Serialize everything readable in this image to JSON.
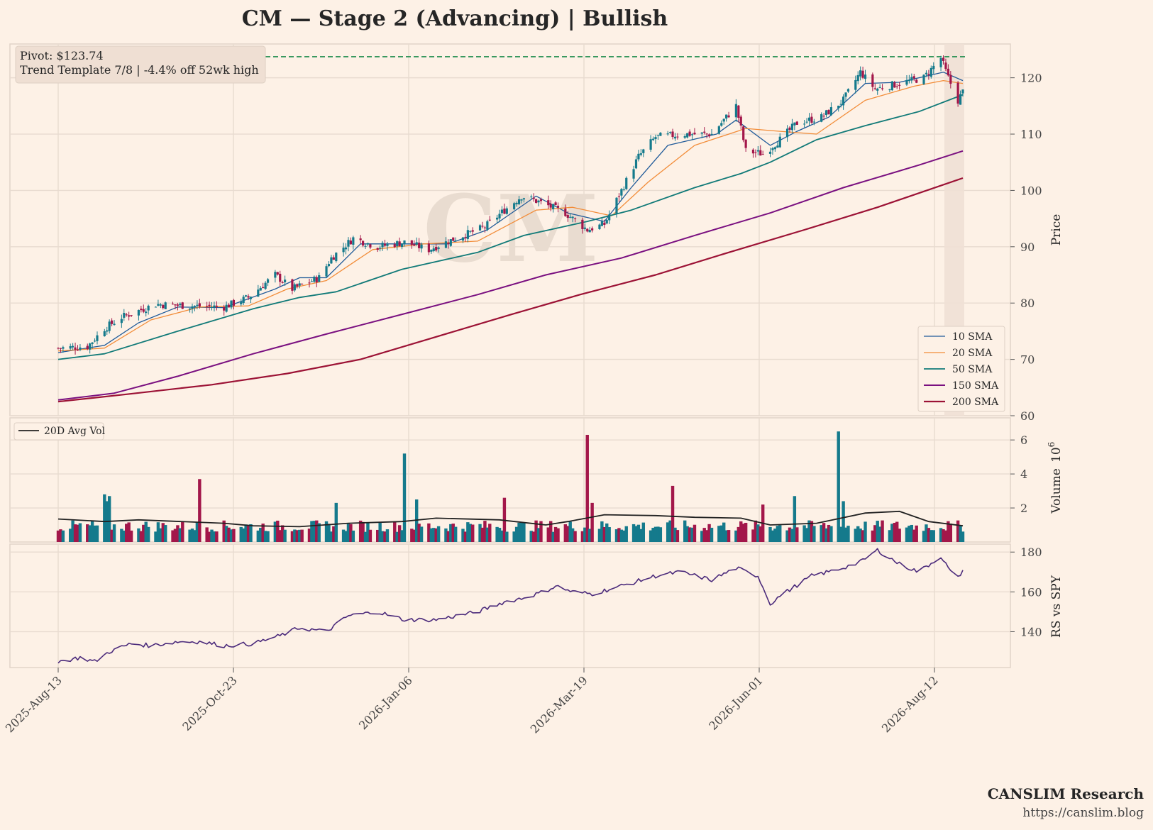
{
  "title": "CM  —  Stage 2 (Advancing)  |  Bullish",
  "watermark": "CM",
  "info_box": {
    "line1": "Pivot: $123.74",
    "line2": "Trend Template 7/8  |  -4.4% off 52wk high"
  },
  "footer": {
    "brand": "CANSLIM Research",
    "url": "https://canslim.blog"
  },
  "colors": {
    "background": "#fdf1e6",
    "grid": "#e8dbd0",
    "up_candle": "#157a8c",
    "down_candle": "#a3174a",
    "sma10": "#1f5a99",
    "sma20": "#f28c38",
    "sma50": "#117a78",
    "sma150": "#7a1080",
    "sma200": "#9c1235",
    "pivot": "#1b8a4a",
    "avg_volume": "#222222",
    "rs_line": "#4b2a7b",
    "highlight": "#efe0d5"
  },
  "chart_data": [
    {
      "type": "candlestick",
      "panel": "price",
      "ylabel": "Price",
      "ylim": [
        60,
        126
      ],
      "yticks": [
        60,
        70,
        80,
        90,
        100,
        110,
        120
      ],
      "x_range": [
        "2025-08-13",
        "2026-08-19"
      ],
      "x_ticks": [
        "2025-Aug-13",
        "2025-Oct-23",
        "2026-Jan-06",
        "2026-Mar-19",
        "2026-Jun-01",
        "2026-Aug-12"
      ],
      "grid": true,
      "legend_position": "lower-right",
      "pivot_line": 123.74,
      "highlight_range": [
        "2026-08-12",
        "2026-08-19"
      ],
      "close_anchors": [
        [
          "2025-08-13",
          72.0
        ],
        [
          "2025-08-25",
          72.3
        ],
        [
          "2025-09-01",
          75.5
        ],
        [
          "2025-09-08",
          77.5
        ],
        [
          "2025-09-22",
          79.8
        ],
        [
          "2025-10-06",
          79.5
        ],
        [
          "2025-10-20",
          79.3
        ],
        [
          "2025-10-30",
          81.0
        ],
        [
          "2025-11-10",
          85.0
        ],
        [
          "2025-11-17",
          82.5
        ],
        [
          "2025-11-28",
          84.5
        ],
        [
          "2025-12-03",
          88.0
        ],
        [
          "2025-12-12",
          91.5
        ],
        [
          "2025-12-22",
          90.0
        ],
        [
          "2026-01-02",
          90.8
        ],
        [
          "2026-01-12",
          89.5
        ],
        [
          "2026-01-23",
          91.5
        ],
        [
          "2026-02-04",
          93.5
        ],
        [
          "2026-02-12",
          96.5
        ],
        [
          "2026-02-19",
          99.0
        ],
        [
          "2026-02-26",
          98.0
        ],
        [
          "2026-03-09",
          96.0
        ],
        [
          "2026-03-18",
          93.0
        ],
        [
          "2026-03-25",
          94.0
        ],
        [
          "2026-04-01",
          100.0
        ],
        [
          "2026-04-08",
          106.0
        ],
        [
          "2026-04-15",
          109.5
        ],
        [
          "2026-04-27",
          110.0
        ],
        [
          "2026-05-08",
          110.0
        ],
        [
          "2026-05-18",
          115.0
        ],
        [
          "2026-05-22",
          107.0
        ],
        [
          "2026-05-29",
          106.5
        ],
        [
          "2026-06-05",
          109.0
        ],
        [
          "2026-06-12",
          112.0
        ],
        [
          "2026-06-22",
          113.0
        ],
        [
          "2026-07-01",
          116.0
        ],
        [
          "2026-07-08",
          121.0
        ],
        [
          "2026-07-14",
          118.0
        ],
        [
          "2026-07-24",
          119.0
        ],
        [
          "2026-08-03",
          120.0
        ],
        [
          "2026-08-10",
          123.5
        ],
        [
          "2026-08-13",
          120.0
        ],
        [
          "2026-08-17",
          116.0
        ],
        [
          "2026-08-19",
          117.5
        ]
      ],
      "series": [
        {
          "name": "10 SMA",
          "values": [
            [
              "2025-08-13",
              71.2
            ],
            [
              "2025-09-01",
              72.5
            ],
            [
              "2025-09-15",
              76.5
            ],
            [
              "2025-10-01",
              79.3
            ],
            [
              "2025-10-20",
              79.2
            ],
            [
              "2025-11-10",
              82.5
            ],
            [
              "2025-11-20",
              84.5
            ],
            [
              "2025-12-01",
              84.5
            ],
            [
              "2025-12-15",
              90.5
            ],
            [
              "2026-01-05",
              90.5
            ],
            [
              "2026-01-20",
              90.5
            ],
            [
              "2026-02-05",
              93.0
            ],
            [
              "2026-02-25",
              99.0
            ],
            [
              "2026-03-10",
              96.0
            ],
            [
              "2026-03-25",
              94.5
            ],
            [
              "2026-04-05",
              100.5
            ],
            [
              "2026-04-20",
              108.0
            ],
            [
              "2026-05-10",
              110.0
            ],
            [
              "2026-05-18",
              112.5
            ],
            [
              "2026-06-01",
              108.0
            ],
            [
              "2026-06-12",
              110.5
            ],
            [
              "2026-06-25",
              113.0
            ],
            [
              "2026-07-10",
              119.0
            ],
            [
              "2026-07-24",
              119.2
            ],
            [
              "2026-08-11",
              121.0
            ],
            [
              "2026-08-19",
              119.5
            ]
          ]
        },
        {
          "name": "20 SMA",
          "values": [
            [
              "2025-08-13",
              71.5
            ],
            [
              "2025-09-01",
              72.0
            ],
            [
              "2025-09-20",
              77.0
            ],
            [
              "2025-10-10",
              79.3
            ],
            [
              "2025-10-30",
              79.5
            ],
            [
              "2025-11-15",
              82.5
            ],
            [
              "2025-12-01",
              84.0
            ],
            [
              "2025-12-20",
              89.5
            ],
            [
              "2026-01-10",
              90.5
            ],
            [
              "2026-02-01",
              91.0
            ],
            [
              "2026-02-25",
              96.5
            ],
            [
              "2026-03-12",
              97.0
            ],
            [
              "2026-03-28",
              95.5
            ],
            [
              "2026-04-12",
              101.5
            ],
            [
              "2026-05-01",
              108.0
            ],
            [
              "2026-05-22",
              111.0
            ],
            [
              "2026-06-05",
              110.5
            ],
            [
              "2026-06-20",
              110.0
            ],
            [
              "2026-07-10",
              116.0
            ],
            [
              "2026-07-30",
              118.5
            ],
            [
              "2026-08-11",
              119.5
            ],
            [
              "2026-08-19",
              119.0
            ]
          ]
        },
        {
          "name": "50 SMA",
          "values": [
            [
              "2025-08-13",
              70.0
            ],
            [
              "2025-09-01",
              71.0
            ],
            [
              "2025-10-01",
              75.0
            ],
            [
              "2025-11-01",
              79.0
            ],
            [
              "2025-11-20",
              81.0
            ],
            [
              "2025-12-05",
              82.0
            ],
            [
              "2026-01-01",
              86.0
            ],
            [
              "2026-02-01",
              89.0
            ],
            [
              "2026-02-20",
              92.0
            ],
            [
              "2026-03-18",
              94.5
            ],
            [
              "2026-04-05",
              96.5
            ],
            [
              "2026-05-01",
              100.5
            ],
            [
              "2026-05-20",
              103.0
            ],
            [
              "2026-06-01",
              105.0
            ],
            [
              "2026-06-20",
              109.0
            ],
            [
              "2026-07-10",
              111.5
            ],
            [
              "2026-08-01",
              114.0
            ],
            [
              "2026-08-19",
              117.0
            ]
          ]
        },
        {
          "name": "150 SMA",
          "values": [
            [
              "2025-08-13",
              62.8
            ],
            [
              "2025-09-05",
              64.0
            ],
            [
              "2025-10-01",
              67.0
            ],
            [
              "2025-11-01",
              71.0
            ],
            [
              "2025-12-01",
              74.5
            ],
            [
              "2026-01-01",
              78.0
            ],
            [
              "2026-02-01",
              81.5
            ],
            [
              "2026-03-01",
              85.0
            ],
            [
              "2026-04-01",
              88.0
            ],
            [
              "2026-05-01",
              92.0
            ],
            [
              "2026-06-01",
              96.0
            ],
            [
              "2026-07-01",
              100.5
            ],
            [
              "2026-08-01",
              104.5
            ],
            [
              "2026-08-19",
              107.0
            ]
          ]
        },
        {
          "name": "200 SMA",
          "values": [
            [
              "2025-08-13",
              62.5
            ],
            [
              "2025-09-10",
              63.8
            ],
            [
              "2025-10-15",
              65.5
            ],
            [
              "2025-11-15",
              67.5
            ],
            [
              "2025-12-15",
              70.0
            ],
            [
              "2026-01-15",
              74.0
            ],
            [
              "2026-02-15",
              78.0
            ],
            [
              "2026-03-15",
              81.5
            ],
            [
              "2026-04-15",
              85.0
            ],
            [
              "2026-05-15",
              89.0
            ],
            [
              "2026-06-15",
              93.0
            ],
            [
              "2026-07-15",
              97.0
            ],
            [
              "2026-08-19",
              102.2
            ]
          ]
        }
      ]
    },
    {
      "type": "bar",
      "panel": "volume",
      "ylabel": "Volume",
      "scale_label": "10^6",
      "ylim": [
        0,
        7.3
      ],
      "yticks": [
        2,
        4,
        6
      ],
      "legend_position": "upper-left",
      "baseline_volume": 0.85,
      "spikes": [
        [
          "2025-09-01",
          2.8
        ],
        [
          "2025-09-02",
          2.4
        ],
        [
          "2025-09-03",
          2.7
        ],
        [
          "2025-10-10",
          3.7
        ],
        [
          "2025-12-05",
          2.3
        ],
        [
          "2026-01-02",
          5.2
        ],
        [
          "2026-01-03",
          2.1
        ],
        [
          "2026-01-07",
          2.5
        ],
        [
          "2026-02-12",
          2.6
        ],
        [
          "2026-03-18",
          6.3
        ],
        [
          "2026-03-20",
          2.3
        ],
        [
          "2026-04-22",
          3.3
        ],
        [
          "2026-05-29",
          2.2
        ],
        [
          "2026-06-11",
          2.7
        ],
        [
          "2026-06-29",
          6.5
        ],
        [
          "2026-07-01",
          2.4
        ],
        [
          "2026-08-16",
          2.0
        ]
      ],
      "series": [
        {
          "name": "20D Avg Vol",
          "values": [
            [
              "2025-08-13",
              1.35
            ],
            [
              "2025-09-01",
              1.2
            ],
            [
              "2025-09-15",
              1.3
            ],
            [
              "2025-10-20",
              1.1
            ],
            [
              "2025-11-01",
              0.95
            ],
            [
              "2025-11-20",
              0.9
            ],
            [
              "2025-12-10",
              1.1
            ],
            [
              "2026-01-01",
              1.2
            ],
            [
              "2026-01-15",
              1.4
            ],
            [
              "2026-02-10",
              1.3
            ],
            [
              "2026-03-01",
              1.0
            ],
            [
              "2026-03-10",
              1.2
            ],
            [
              "2026-03-25",
              1.6
            ],
            [
              "2026-04-15",
              1.55
            ],
            [
              "2026-05-01",
              1.45
            ],
            [
              "2026-05-20",
              1.4
            ],
            [
              "2026-06-01",
              1.0
            ],
            [
              "2026-06-20",
              1.1
            ],
            [
              "2026-07-10",
              1.7
            ],
            [
              "2026-07-24",
              1.8
            ],
            [
              "2026-08-05",
              1.2
            ],
            [
              "2026-08-19",
              0.95
            ]
          ]
        }
      ]
    },
    {
      "type": "line",
      "panel": "relative-strength",
      "ylabel": "RS vs SPY",
      "ylim": [
        122,
        184
      ],
      "yticks": [
        140,
        160,
        180
      ],
      "series": [
        {
          "name": "",
          "values": [
            [
              "2025-08-13",
              125
            ],
            [
              "2025-08-22",
              127
            ],
            [
              "2025-08-28",
              125
            ],
            [
              "2025-09-03",
              130
            ],
            [
              "2025-09-12",
              134
            ],
            [
              "2025-09-20",
              133
            ],
            [
              "2025-10-01",
              135
            ],
            [
              "2025-10-10",
              135
            ],
            [
              "2025-10-20",
              133
            ],
            [
              "2025-11-01",
              134
            ],
            [
              "2025-11-12",
              138
            ],
            [
              "2025-11-20",
              142
            ],
            [
              "2025-12-01",
              140
            ],
            [
              "2025-12-10",
              148
            ],
            [
              "2025-12-22",
              150
            ],
            [
              "2026-01-02",
              146
            ],
            [
              "2026-01-15",
              146
            ],
            [
              "2026-02-01",
              150
            ],
            [
              "2026-02-12",
              155
            ],
            [
              "2026-02-20",
              157
            ],
            [
              "2026-02-28",
              160
            ],
            [
              "2026-03-05",
              163
            ],
            [
              "2026-03-12",
              160
            ],
            [
              "2026-03-20",
              159
            ],
            [
              "2026-04-01",
              163
            ],
            [
              "2026-04-15",
              168
            ],
            [
              "2026-04-25",
              170
            ],
            [
              "2026-05-08",
              166
            ],
            [
              "2026-05-18",
              172
            ],
            [
              "2026-05-27",
              168
            ],
            [
              "2026-06-01",
              154
            ],
            [
              "2026-06-05",
              158
            ],
            [
              "2026-06-18",
              168
            ],
            [
              "2026-06-28",
              171
            ],
            [
              "2026-07-08",
              175
            ],
            [
              "2026-07-15",
              181
            ],
            [
              "2026-07-24",
              174
            ],
            [
              "2026-08-01",
              170
            ],
            [
              "2026-08-10",
              178
            ],
            [
              "2026-08-14",
              170
            ],
            [
              "2026-08-17",
              167
            ],
            [
              "2026-08-19",
              171
            ]
          ]
        }
      ]
    }
  ]
}
